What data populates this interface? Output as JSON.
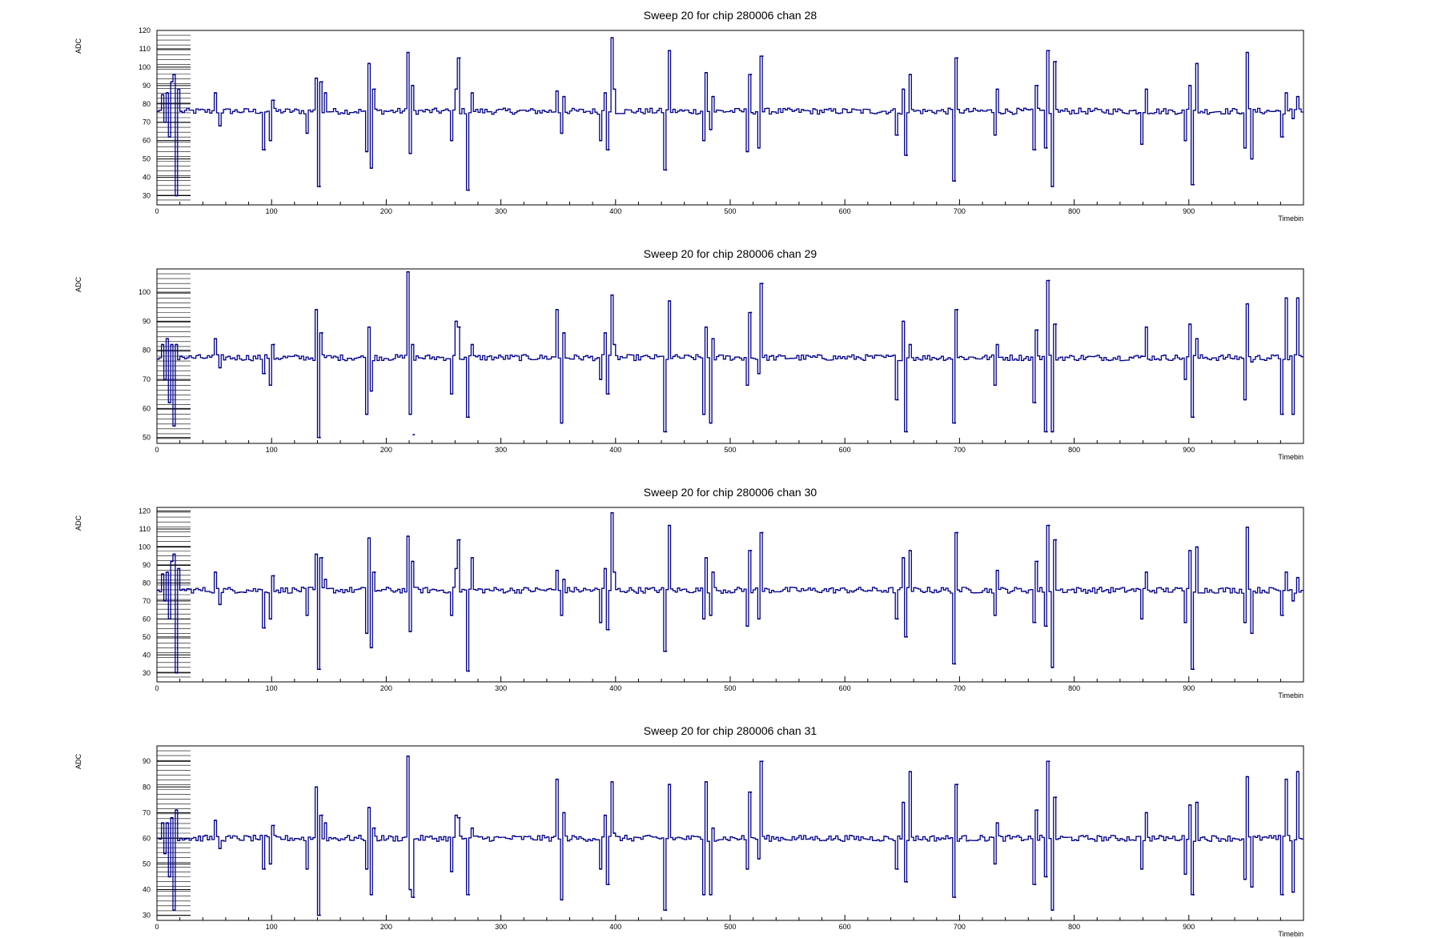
{
  "figure": {
    "title": "Sweep 20 for chip 280006"
  },
  "chart_data": [
    {
      "type": "line",
      "title": "Sweep 20 for chip 280006 chan 28",
      "xlabel": "Timebin",
      "ylabel": "ADC",
      "xlim": [
        0,
        1000
      ],
      "ylim": [
        25,
        120
      ],
      "xticks": [
        0,
        100,
        200,
        300,
        400,
        500,
        600,
        700,
        800,
        900
      ],
      "yticks": [
        30,
        40,
        50,
        60,
        70,
        80,
        90,
        100,
        110,
        120
      ],
      "baseline": 76,
      "grid": false,
      "legend": "none",
      "series_color": "#00008b",
      "points": [
        [
          0,
          76
        ],
        [
          4,
          85
        ],
        [
          6,
          70
        ],
        [
          8,
          86
        ],
        [
          10,
          62
        ],
        [
          12,
          92
        ],
        [
          14,
          96
        ],
        [
          16,
          30
        ],
        [
          18,
          88
        ],
        [
          20,
          76
        ],
        [
          50,
          86
        ],
        [
          54,
          68
        ],
        [
          93,
          55
        ],
        [
          98,
          60
        ],
        [
          101,
          82
        ],
        [
          130,
          64
        ],
        [
          138,
          94
        ],
        [
          141,
          35
        ],
        [
          143,
          92
        ],
        [
          146,
          86
        ],
        [
          182,
          54
        ],
        [
          184,
          102
        ],
        [
          186,
          45
        ],
        [
          189,
          88
        ],
        [
          218,
          108
        ],
        [
          220,
          53
        ],
        [
          222,
          90
        ],
        [
          256,
          60
        ],
        [
          260,
          88
        ],
        [
          263,
          105
        ],
        [
          271,
          33
        ],
        [
          274,
          86
        ],
        [
          348,
          87
        ],
        [
          352,
          64
        ],
        [
          354,
          84
        ],
        [
          386,
          60
        ],
        [
          390,
          86
        ],
        [
          393,
          55
        ],
        [
          396,
          116
        ],
        [
          398,
          88
        ],
        [
          443,
          44
        ],
        [
          446,
          109
        ],
        [
          476,
          60
        ],
        [
          478,
          97
        ],
        [
          482,
          66
        ],
        [
          484,
          84
        ],
        [
          514,
          54
        ],
        [
          517,
          96
        ],
        [
          524,
          56
        ],
        [
          527,
          106
        ],
        [
          645,
          63
        ],
        [
          650,
          88
        ],
        [
          653,
          52
        ],
        [
          656,
          96
        ],
        [
          695,
          38
        ],
        [
          697,
          105
        ],
        [
          730,
          63
        ],
        [
          732,
          88
        ],
        [
          765,
          55
        ],
        [
          767,
          90
        ],
        [
          775,
          56
        ],
        [
          777,
          109
        ],
        [
          780,
          35
        ],
        [
          783,
          103
        ],
        [
          858,
          58
        ],
        [
          862,
          88
        ],
        [
          896,
          60
        ],
        [
          900,
          90
        ],
        [
          903,
          36
        ],
        [
          906,
          102
        ],
        [
          948,
          56
        ],
        [
          950,
          108
        ],
        [
          954,
          50
        ],
        [
          981,
          62
        ],
        [
          984,
          86
        ],
        [
          990,
          72
        ],
        [
          994,
          84
        ]
      ]
    },
    {
      "type": "line",
      "title": "Sweep 20 for chip 280006 chan 29",
      "xlabel": "Timebin",
      "ylabel": "ADC",
      "xlim": [
        0,
        1000
      ],
      "ylim": [
        48,
        108
      ],
      "xticks": [
        0,
        100,
        200,
        300,
        400,
        500,
        600,
        700,
        800,
        900
      ],
      "yticks": [
        50,
        60,
        70,
        80,
        90,
        100
      ],
      "baseline": 77.5,
      "grid": false,
      "legend": "none",
      "series_color": "#00008b",
      "points": [
        [
          0,
          77
        ],
        [
          4,
          82
        ],
        [
          6,
          70
        ],
        [
          8,
          84
        ],
        [
          10,
          62
        ],
        [
          12,
          82
        ],
        [
          14,
          54
        ],
        [
          16,
          82
        ],
        [
          20,
          78
        ],
        [
          50,
          84
        ],
        [
          54,
          74
        ],
        [
          93,
          72
        ],
        [
          98,
          68
        ],
        [
          101,
          82
        ],
        [
          138,
          94
        ],
        [
          141,
          50
        ],
        [
          143,
          86
        ],
        [
          182,
          58
        ],
        [
          184,
          88
        ],
        [
          186,
          66
        ],
        [
          218,
          107
        ],
        [
          220,
          58
        ],
        [
          223,
          51
        ],
        [
          222,
          82
        ],
        [
          256,
          65
        ],
        [
          260,
          90
        ],
        [
          263,
          88
        ],
        [
          271,
          57
        ],
        [
          274,
          82
        ],
        [
          348,
          94
        ],
        [
          352,
          55
        ],
        [
          354,
          86
        ],
        [
          386,
          70
        ],
        [
          390,
          86
        ],
        [
          393,
          65
        ],
        [
          396,
          99
        ],
        [
          398,
          82
        ],
        [
          443,
          52
        ],
        [
          446,
          97
        ],
        [
          476,
          58
        ],
        [
          478,
          88
        ],
        [
          482,
          55
        ],
        [
          484,
          84
        ],
        [
          514,
          68
        ],
        [
          517,
          93
        ],
        [
          524,
          72
        ],
        [
          527,
          103
        ],
        [
          645,
          63
        ],
        [
          650,
          90
        ],
        [
          653,
          52
        ],
        [
          656,
          82
        ],
        [
          695,
          55
        ],
        [
          697,
          94
        ],
        [
          730,
          68
        ],
        [
          732,
          82
        ],
        [
          765,
          62
        ],
        [
          767,
          87
        ],
        [
          775,
          52
        ],
        [
          777,
          104
        ],
        [
          780,
          52
        ],
        [
          783,
          89
        ],
        [
          858,
          78
        ],
        [
          862,
          88
        ],
        [
          896,
          70
        ],
        [
          900,
          89
        ],
        [
          903,
          57
        ],
        [
          906,
          84
        ],
        [
          948,
          63
        ],
        [
          950,
          96
        ],
        [
          954,
          76
        ],
        [
          981,
          58
        ],
        [
          984,
          98
        ],
        [
          990,
          58
        ],
        [
          994,
          98
        ]
      ]
    },
    {
      "type": "line",
      "title": "Sweep 20 for chip 280006 chan 30",
      "xlabel": "Timebin",
      "ylabel": "ADC",
      "xlim": [
        0,
        1000
      ],
      "ylim": [
        25,
        122
      ],
      "xticks": [
        0,
        100,
        200,
        300,
        400,
        500,
        600,
        700,
        800,
        900
      ],
      "yticks": [
        30,
        40,
        50,
        60,
        70,
        80,
        90,
        100,
        110,
        120
      ],
      "baseline": 76,
      "grid": false,
      "legend": "none",
      "series_color": "#00008b",
      "points": [
        [
          0,
          76
        ],
        [
          4,
          85
        ],
        [
          6,
          70
        ],
        [
          8,
          86
        ],
        [
          10,
          60
        ],
        [
          12,
          92
        ],
        [
          14,
          96
        ],
        [
          16,
          30
        ],
        [
          18,
          88
        ],
        [
          20,
          76
        ],
        [
          50,
          86
        ],
        [
          54,
          68
        ],
        [
          93,
          55
        ],
        [
          98,
          60
        ],
        [
          101,
          84
        ],
        [
          130,
          62
        ],
        [
          138,
          96
        ],
        [
          141,
          32
        ],
        [
          143,
          94
        ],
        [
          146,
          82
        ],
        [
          182,
          52
        ],
        [
          184,
          105
        ],
        [
          186,
          44
        ],
        [
          189,
          86
        ],
        [
          218,
          106
        ],
        [
          220,
          53
        ],
        [
          222,
          92
        ],
        [
          256,
          62
        ],
        [
          260,
          88
        ],
        [
          263,
          104
        ],
        [
          271,
          31
        ],
        [
          274,
          94
        ],
        [
          348,
          87
        ],
        [
          352,
          62
        ],
        [
          354,
          82
        ],
        [
          386,
          58
        ],
        [
          390,
          88
        ],
        [
          393,
          54
        ],
        [
          396,
          119
        ],
        [
          398,
          86
        ],
        [
          443,
          42
        ],
        [
          446,
          112
        ],
        [
          476,
          60
        ],
        [
          478,
          94
        ],
        [
          482,
          62
        ],
        [
          484,
          86
        ],
        [
          514,
          56
        ],
        [
          517,
          98
        ],
        [
          524,
          60
        ],
        [
          527,
          108
        ],
        [
          645,
          60
        ],
        [
          650,
          94
        ],
        [
          653,
          50
        ],
        [
          656,
          98
        ],
        [
          695,
          35
        ],
        [
          697,
          108
        ],
        [
          730,
          62
        ],
        [
          732,
          87
        ],
        [
          765,
          58
        ],
        [
          767,
          92
        ],
        [
          775,
          56
        ],
        [
          777,
          112
        ],
        [
          780,
          33
        ],
        [
          783,
          104
        ],
        [
          858,
          60
        ],
        [
          862,
          86
        ],
        [
          896,
          58
        ],
        [
          900,
          98
        ],
        [
          903,
          32
        ],
        [
          906,
          100
        ],
        [
          948,
          58
        ],
        [
          950,
          111
        ],
        [
          954,
          52
        ],
        [
          981,
          62
        ],
        [
          984,
          86
        ],
        [
          990,
          70
        ],
        [
          994,
          83
        ]
      ]
    },
    {
      "type": "line",
      "title": "Sweep 20 for chip 280006 chan 31",
      "xlabel": "Timebin",
      "ylabel": "ADC",
      "xlim": [
        0,
        1000
      ],
      "ylim": [
        28,
        96
      ],
      "xticks": [
        0,
        100,
        200,
        300,
        400,
        500,
        600,
        700,
        800,
        900
      ],
      "yticks": [
        30,
        40,
        50,
        60,
        70,
        80,
        90
      ],
      "baseline": 60,
      "grid": false,
      "legend": "none",
      "series_color": "#00008b",
      "points": [
        [
          0,
          60
        ],
        [
          4,
          66
        ],
        [
          6,
          54
        ],
        [
          8,
          66
        ],
        [
          10,
          45
        ],
        [
          12,
          68
        ],
        [
          14,
          32
        ],
        [
          16,
          71
        ],
        [
          20,
          60
        ],
        [
          50,
          67
        ],
        [
          54,
          56
        ],
        [
          93,
          48
        ],
        [
          98,
          50
        ],
        [
          101,
          65
        ],
        [
          130,
          48
        ],
        [
          138,
          80
        ],
        [
          141,
          30
        ],
        [
          143,
          69
        ],
        [
          146,
          66
        ],
        [
          182,
          48
        ],
        [
          184,
          72
        ],
        [
          186,
          38
        ],
        [
          189,
          64
        ],
        [
          218,
          92
        ],
        [
          220,
          40
        ],
        [
          223,
          37
        ],
        [
          256,
          47
        ],
        [
          260,
          69
        ],
        [
          263,
          68
        ],
        [
          271,
          38
        ],
        [
          274,
          64
        ],
        [
          348,
          83
        ],
        [
          352,
          36
        ],
        [
          354,
          70
        ],
        [
          386,
          48
        ],
        [
          390,
          69
        ],
        [
          393,
          42
        ],
        [
          396,
          82
        ],
        [
          398,
          62
        ],
        [
          443,
          32
        ],
        [
          446,
          81
        ],
        [
          476,
          38
        ],
        [
          478,
          82
        ],
        [
          482,
          38
        ],
        [
          484,
          64
        ],
        [
          514,
          48
        ],
        [
          517,
          78
        ],
        [
          524,
          52
        ],
        [
          527,
          90
        ],
        [
          645,
          48
        ],
        [
          650,
          74
        ],
        [
          653,
          43
        ],
        [
          656,
          86
        ],
        [
          695,
          37
        ],
        [
          697,
          81
        ],
        [
          730,
          50
        ],
        [
          732,
          66
        ],
        [
          765,
          42
        ],
        [
          767,
          71
        ],
        [
          775,
          45
        ],
        [
          777,
          90
        ],
        [
          780,
          32
        ],
        [
          783,
          76
        ],
        [
          858,
          48
        ],
        [
          862,
          70
        ],
        [
          896,
          46
        ],
        [
          900,
          73
        ],
        [
          903,
          38
        ],
        [
          906,
          74
        ],
        [
          948,
          44
        ],
        [
          950,
          84
        ],
        [
          954,
          41
        ],
        [
          981,
          38
        ],
        [
          984,
          83
        ],
        [
          990,
          39
        ],
        [
          994,
          86
        ]
      ]
    }
  ]
}
